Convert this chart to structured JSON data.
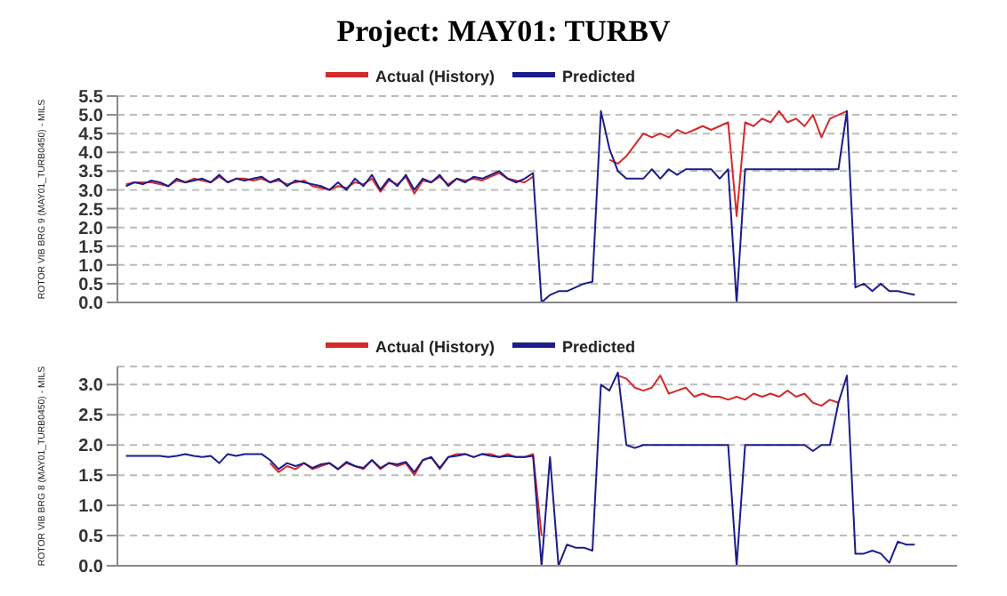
{
  "chart_data": [
    {
      "type": "line",
      "title": "Project: MAY01: TURBV",
      "ylabel": "ROTOR VIB BRG 9 (MAY01_TURB0450) - MILS",
      "categories": [
        null,
        null,
        null,
        null,
        null,
        null,
        null,
        null,
        null,
        null,
        null,
        null,
        null,
        null,
        null,
        null,
        null,
        null,
        null,
        null,
        null,
        null,
        null,
        null,
        null,
        null,
        null,
        null,
        null,
        null,
        null,
        null,
        null,
        null,
        null,
        null,
        null,
        null,
        null,
        null,
        null,
        null,
        null,
        null,
        null,
        null,
        null,
        null,
        null,
        null,
        null,
        null,
        null,
        null,
        null,
        null,
        null,
        null,
        null,
        null,
        null,
        null,
        null,
        null,
        null,
        null,
        null,
        null,
        null,
        null,
        null,
        null,
        null,
        null,
        null,
        null,
        null,
        null,
        null,
        null,
        null,
        null,
        null,
        null,
        null,
        null,
        null,
        null,
        null,
        null,
        null,
        null,
        null,
        null,
        null,
        null,
        null,
        null,
        null,
        null
      ],
      "ylim": [
        0,
        5.5
      ],
      "yticks": [
        {
          "value": 0,
          "label": "0.0"
        },
        {
          "value": 0.5,
          "label": "0.5"
        },
        {
          "value": 1,
          "label": "1.0"
        },
        {
          "value": 1.5,
          "label": "1.5"
        },
        {
          "value": 2,
          "label": "2.0"
        },
        {
          "value": 2.5,
          "label": "2.5"
        },
        {
          "value": 3,
          "label": "3.0"
        },
        {
          "value": 3.5,
          "label": "3.5"
        },
        {
          "value": 4,
          "label": "4.0"
        },
        {
          "value": 4.5,
          "label": "4.5"
        },
        {
          "value": 5,
          "label": "5.0"
        },
        {
          "value": 5.5,
          "label": "5.5"
        }
      ],
      "grid": "y",
      "legend": "top",
      "tick_labels": "y",
      "series": [
        {
          "name": "Actual (History)",
          "color": "#d42a2a",
          "values": [
            null,
            3.15,
            3.2,
            3.2,
            3.2,
            3.15,
            3.1,
            3.25,
            3.2,
            3.3,
            3.25,
            3.2,
            3.35,
            3.2,
            3.3,
            3.3,
            3.25,
            3.3,
            3.2,
            3.25,
            3.15,
            3.2,
            3.25,
            3.1,
            3.05,
            3.0,
            3.1,
            3.05,
            3.2,
            3.15,
            3.3,
            2.95,
            3.25,
            3.15,
            3.35,
            2.9,
            3.25,
            3.2,
            3.35,
            3.15,
            3.3,
            3.25,
            3.3,
            3.25,
            3.35,
            3.45,
            3.3,
            3.25,
            3.2,
            3.35,
            null,
            null,
            null,
            null,
            null,
            null,
            null,
            null,
            3.8,
            3.7,
            3.9,
            4.2,
            4.5,
            4.4,
            4.5,
            4.4,
            4.6,
            4.5,
            4.6,
            4.7,
            4.6,
            4.7,
            4.8,
            2.3,
            4.8,
            4.7,
            4.9,
            4.8,
            5.1,
            4.8,
            4.9,
            4.7,
            5.0,
            4.4,
            4.9,
            5.0,
            5.1,
            null,
            null,
            null,
            null,
            null,
            null,
            null,
            null,
            null,
            null,
            null,
            null,
            null
          ]
        },
        {
          "name": "Predicted",
          "color": "#1c1c8a",
          "values": [
            null,
            3.1,
            3.2,
            3.15,
            3.25,
            3.2,
            3.1,
            3.3,
            3.2,
            3.25,
            3.3,
            3.2,
            3.4,
            3.2,
            3.3,
            3.25,
            3.3,
            3.35,
            3.2,
            3.3,
            3.1,
            3.25,
            3.2,
            3.15,
            3.1,
            3.0,
            3.2,
            3.0,
            3.3,
            3.1,
            3.4,
            3.0,
            3.3,
            3.1,
            3.4,
            3.0,
            3.3,
            3.2,
            3.4,
            3.1,
            3.3,
            3.2,
            3.35,
            3.3,
            3.4,
            3.5,
            3.3,
            3.2,
            3.3,
            3.45,
            0.0,
            0.2,
            0.3,
            0.3,
            0.4,
            0.5,
            0.55,
            5.1,
            4.1,
            3.5,
            3.3,
            3.3,
            3.3,
            3.55,
            3.3,
            3.55,
            3.4,
            3.55,
            3.55,
            3.55,
            3.55,
            3.3,
            3.55,
            0.0,
            3.55,
            3.55,
            3.55,
            3.55,
            3.55,
            3.55,
            3.55,
            3.55,
            3.55,
            3.55,
            3.55,
            3.55,
            5.1,
            0.4,
            0.5,
            0.3,
            0.5,
            0.3,
            0.3,
            0.25,
            0.2,
            null,
            null,
            null,
            null,
            null
          ]
        }
      ]
    },
    {
      "type": "line",
      "ylabel": "ROTOR VIB BRG 8 (MAY01_TURB0450) - MILS",
      "categories": [
        null,
        null,
        null,
        null,
        null,
        null,
        null,
        null,
        null,
        null,
        null,
        null,
        null,
        null,
        null,
        null,
        null,
        null,
        null,
        null,
        null,
        null,
        null,
        null,
        null,
        null,
        null,
        null,
        null,
        null,
        null,
        null,
        null,
        null,
        null,
        null,
        null,
        null,
        null,
        null,
        null,
        null,
        null,
        null,
        null,
        null,
        null,
        null,
        null,
        null,
        null,
        null,
        null,
        null,
        null,
        null,
        null,
        null,
        null,
        null,
        null,
        null,
        null,
        null,
        null,
        null,
        null,
        null,
        null,
        null,
        null,
        null,
        null,
        null,
        null,
        null,
        null,
        null,
        null,
        null,
        null,
        null,
        null,
        null,
        null,
        null,
        null,
        null,
        null,
        null,
        null,
        null,
        null,
        null,
        null,
        null,
        null,
        null,
        null,
        null
      ],
      "ylim": [
        0,
        3.3
      ],
      "yticks": [
        {
          "value": 0,
          "label": "0.0"
        },
        {
          "value": 0.5,
          "label": "0.5"
        },
        {
          "value": 1,
          "label": "1.0"
        },
        {
          "value": 1.5,
          "label": "1.5"
        },
        {
          "value": 2,
          "label": "2.0"
        },
        {
          "value": 2.5,
          "label": "2.5"
        },
        {
          "value": 3,
          "label": "3.0"
        }
      ],
      "grid": "y",
      "legend": "top",
      "tick_labels": "y",
      "series": [
        {
          "name": "Actual (History)",
          "color": "#d42a2a",
          "values": [
            null,
            null,
            null,
            null,
            null,
            null,
            null,
            null,
            null,
            null,
            null,
            null,
            null,
            null,
            null,
            null,
            null,
            null,
            1.7,
            1.55,
            1.65,
            1.6,
            1.7,
            1.6,
            1.65,
            1.7,
            1.6,
            1.7,
            1.65,
            1.6,
            1.75,
            1.6,
            1.7,
            1.65,
            1.7,
            1.5,
            1.75,
            1.8,
            1.6,
            1.8,
            1.85,
            1.85,
            1.8,
            1.85,
            1.85,
            1.8,
            1.85,
            1.8,
            1.8,
            1.85,
            0.5,
            null,
            null,
            null,
            null,
            null,
            null,
            null,
            null,
            3.15,
            3.1,
            2.95,
            2.9,
            2.95,
            3.15,
            2.85,
            2.9,
            2.95,
            2.8,
            2.85,
            2.8,
            2.8,
            2.75,
            2.8,
            2.75,
            2.85,
            2.8,
            2.85,
            2.8,
            2.9,
            2.8,
            2.85,
            2.7,
            2.65,
            2.75,
            2.7,
            null,
            null,
            null,
            null,
            null,
            null,
            null,
            null,
            null,
            null,
            null,
            null,
            null,
            null
          ]
        },
        {
          "name": "Predicted",
          "color": "#1c1c8a",
          "values": [
            null,
            1.82,
            1.82,
            1.82,
            1.82,
            1.82,
            1.8,
            1.82,
            1.85,
            1.82,
            1.8,
            1.82,
            1.7,
            1.85,
            1.82,
            1.85,
            1.85,
            1.85,
            1.75,
            1.6,
            1.7,
            1.65,
            1.7,
            1.62,
            1.68,
            1.7,
            1.6,
            1.72,
            1.65,
            1.62,
            1.75,
            1.62,
            1.7,
            1.68,
            1.72,
            1.55,
            1.75,
            1.8,
            1.62,
            1.8,
            1.82,
            1.85,
            1.8,
            1.85,
            1.82,
            1.8,
            1.82,
            1.8,
            1.8,
            1.82,
            0.0,
            1.8,
            0.0,
            0.35,
            0.3,
            0.3,
            0.25,
            3.0,
            2.9,
            3.2,
            2.0,
            1.95,
            2.0,
            2.0,
            2.0,
            2.0,
            2.0,
            2.0,
            2.0,
            2.0,
            2.0,
            2.0,
            2.0,
            0.0,
            2.0,
            2.0,
            2.0,
            2.0,
            2.0,
            2.0,
            2.0,
            2.0,
            1.9,
            2.0,
            2.0,
            2.7,
            3.15,
            0.2,
            0.2,
            0.25,
            0.2,
            0.05,
            0.4,
            0.35,
            0.35,
            null,
            null,
            null,
            null,
            null
          ]
        }
      ]
    }
  ]
}
